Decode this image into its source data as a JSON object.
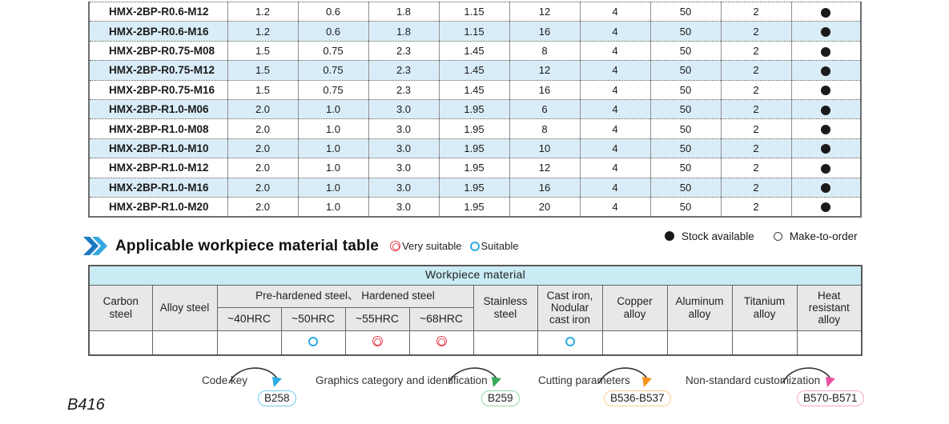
{
  "spec_table": {
    "rows": [
      {
        "model": "HMX-2BP-R0.6-M12",
        "values": [
          "1.2",
          "0.6",
          "1.8",
          "1.15",
          "12",
          "4",
          "50",
          "2"
        ],
        "stock": "available"
      },
      {
        "model": "HMX-2BP-R0.6-M16",
        "values": [
          "1.2",
          "0.6",
          "1.8",
          "1.15",
          "16",
          "4",
          "50",
          "2"
        ],
        "stock": "available"
      },
      {
        "model": "HMX-2BP-R0.75-M08",
        "values": [
          "1.5",
          "0.75",
          "2.3",
          "1.45",
          "8",
          "4",
          "50",
          "2"
        ],
        "stock": "available"
      },
      {
        "model": "HMX-2BP-R0.75-M12",
        "values": [
          "1.5",
          "0.75",
          "2.3",
          "1.45",
          "12",
          "4",
          "50",
          "2"
        ],
        "stock": "available"
      },
      {
        "model": "HMX-2BP-R0.75-M16",
        "values": [
          "1.5",
          "0.75",
          "2.3",
          "1.45",
          "16",
          "4",
          "50",
          "2"
        ],
        "stock": "available"
      },
      {
        "model": "HMX-2BP-R1.0-M06",
        "values": [
          "2.0",
          "1.0",
          "3.0",
          "1.95",
          "6",
          "4",
          "50",
          "2"
        ],
        "stock": "available"
      },
      {
        "model": "HMX-2BP-R1.0-M08",
        "values": [
          "2.0",
          "1.0",
          "3.0",
          "1.95",
          "8",
          "4",
          "50",
          "2"
        ],
        "stock": "available"
      },
      {
        "model": "HMX-2BP-R1.0-M10",
        "values": [
          "2.0",
          "1.0",
          "3.0",
          "1.95",
          "10",
          "4",
          "50",
          "2"
        ],
        "stock": "available"
      },
      {
        "model": "HMX-2BP-R1.0-M12",
        "values": [
          "2.0",
          "1.0",
          "3.0",
          "1.95",
          "12",
          "4",
          "50",
          "2"
        ],
        "stock": "available"
      },
      {
        "model": "HMX-2BP-R1.0-M16",
        "values": [
          "2.0",
          "1.0",
          "3.0",
          "1.95",
          "16",
          "4",
          "50",
          "2"
        ],
        "stock": "available"
      },
      {
        "model": "HMX-2BP-R1.0-M20",
        "values": [
          "2.0",
          "1.0",
          "3.0",
          "1.95",
          "20",
          "4",
          "50",
          "2"
        ],
        "stock": "available"
      }
    ]
  },
  "stock_legend": {
    "available": "Stock available",
    "make_to_order": "Make-to-order"
  },
  "heading": {
    "title": "Applicable workpiece material table",
    "very_suitable": "Very suitable",
    "suitable": "Suitable"
  },
  "material_table": {
    "banner": "Workpiece material",
    "group_header": "Pre-hardened steel、 Hardened steel",
    "columns": [
      {
        "label": "Carbon\nsteel",
        "group": false,
        "rating": "none"
      },
      {
        "label": "Alloy steel",
        "group": false,
        "rating": "none"
      },
      {
        "label": "~40HRC",
        "group": true,
        "rating": "none"
      },
      {
        "label": "~50HRC",
        "group": true,
        "rating": "suitable"
      },
      {
        "label": "~55HRC",
        "group": true,
        "rating": "very"
      },
      {
        "label": "~68HRC",
        "group": true,
        "rating": "very"
      },
      {
        "label": "Stainless\nsteel",
        "group": false,
        "rating": "none"
      },
      {
        "label": "Cast iron,\nNodular\ncast iron",
        "group": false,
        "rating": "suitable"
      },
      {
        "label": "Copper\nalloy",
        "group": false,
        "rating": "none"
      },
      {
        "label": "Aluminum\nalloy",
        "group": false,
        "rating": "none"
      },
      {
        "label": "Titanium\nalloy",
        "group": false,
        "rating": "none"
      },
      {
        "label": "Heat\nresistant\nalloy",
        "group": false,
        "rating": "none"
      }
    ]
  },
  "references": [
    {
      "label": "Code key",
      "badge": "B258",
      "arrow_color": "#29abe2",
      "border_color": "#6fc9ea"
    },
    {
      "label": "Graphics category and identification",
      "badge": "B259",
      "arrow_color": "#3aa858",
      "border_color": "#93d6ab"
    },
    {
      "label": "Cutting parameters",
      "badge": "B536-B537",
      "arrow_color": "#f7941d",
      "border_color": "#f9cd8a"
    },
    {
      "label": "Non-standard customization",
      "badge": "B570-B571",
      "arrow_color": "#ec4fa0",
      "border_color": "#f6a5c9"
    }
  ],
  "page_number": "B416",
  "colors": {
    "row_alt": "#d9edf8",
    "banner_bg": "#c9ebf4",
    "header_bg": "#e8e8e8",
    "very_suitable": "#e8404f",
    "suitable": "#29abe2",
    "stock_dot": "#1a1a1a"
  }
}
